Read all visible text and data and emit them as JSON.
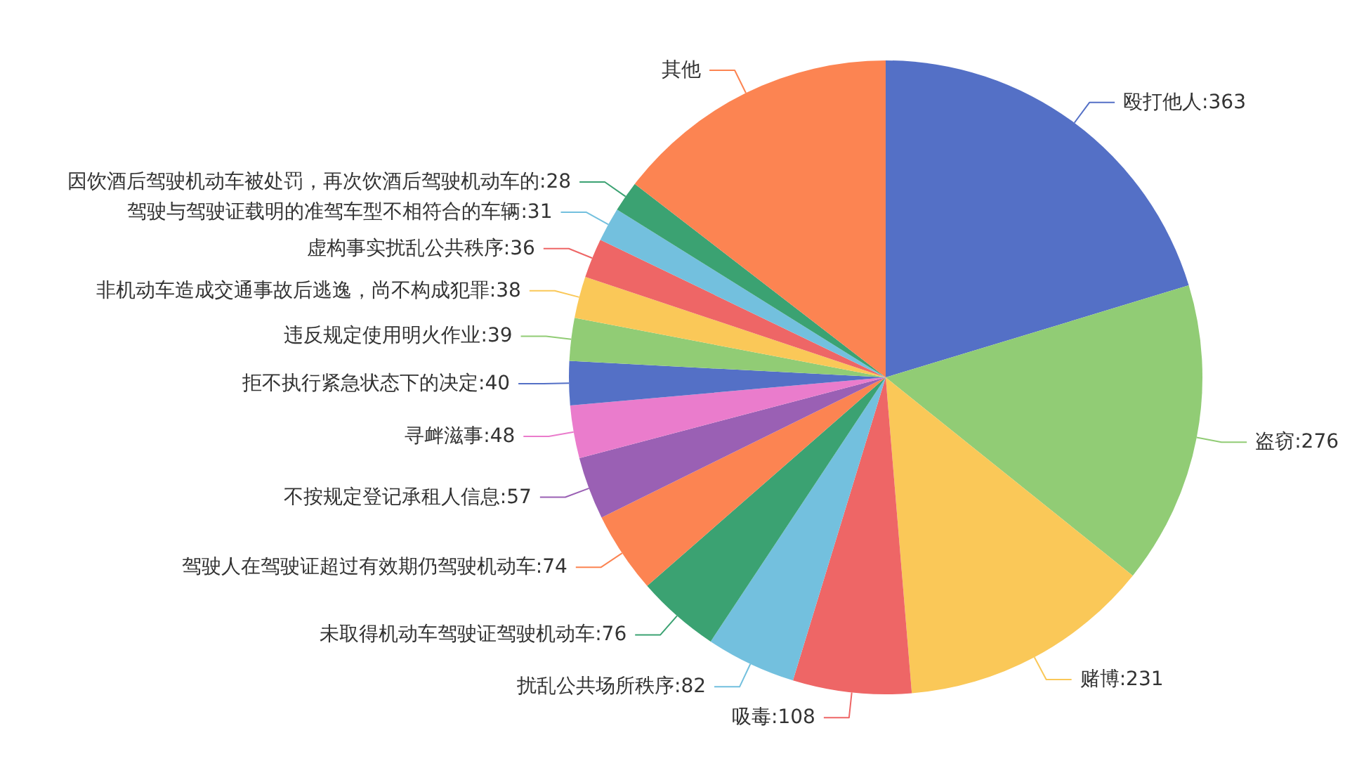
{
  "chart_data": {
    "type": "pie",
    "categories": [
      "殴打他人",
      "盗窃",
      "赌博",
      "吸毒",
      "扰乱公共场所秩序",
      "未取得机动车驾驶证驾驶机动车",
      "驾驶人在驾驶证超过有效期仍驾驶机动车",
      "不按规定登记承租人信息",
      "寻衅滋事",
      "拒不执行紧急状态下的决定",
      "违反规定使用明火作业",
      "非机动车造成交通事故后逃逸，尚不构成犯罪",
      "虚构事实扰乱公共秩序",
      "驾驶与驾驶证载明的准驾车型不相符合的车辆",
      "因饮酒后驾驶机动车被处罚，再次饮酒后驾驶机动车的",
      "其他"
    ],
    "values": [
      363,
      276,
      231,
      108,
      82,
      76,
      74,
      57,
      48,
      40,
      39,
      38,
      36,
      31,
      28,
      260
    ],
    "colors": [
      "#5470c6",
      "#91cc75",
      "#fac858",
      "#ee6666",
      "#73c0de",
      "#3ba272",
      "#fc8452",
      "#9a60b4",
      "#ea7ccc",
      "#5470c6",
      "#91cc75",
      "#fac858",
      "#ee6666",
      "#73c0de",
      "#3ba272",
      "#fc8452"
    ],
    "value_labels": [
      "363",
      "276",
      "231",
      "108",
      "82",
      "76",
      "74",
      "57",
      "48",
      "40",
      "39",
      "38",
      "36",
      "31",
      "28",
      null
    ]
  }
}
